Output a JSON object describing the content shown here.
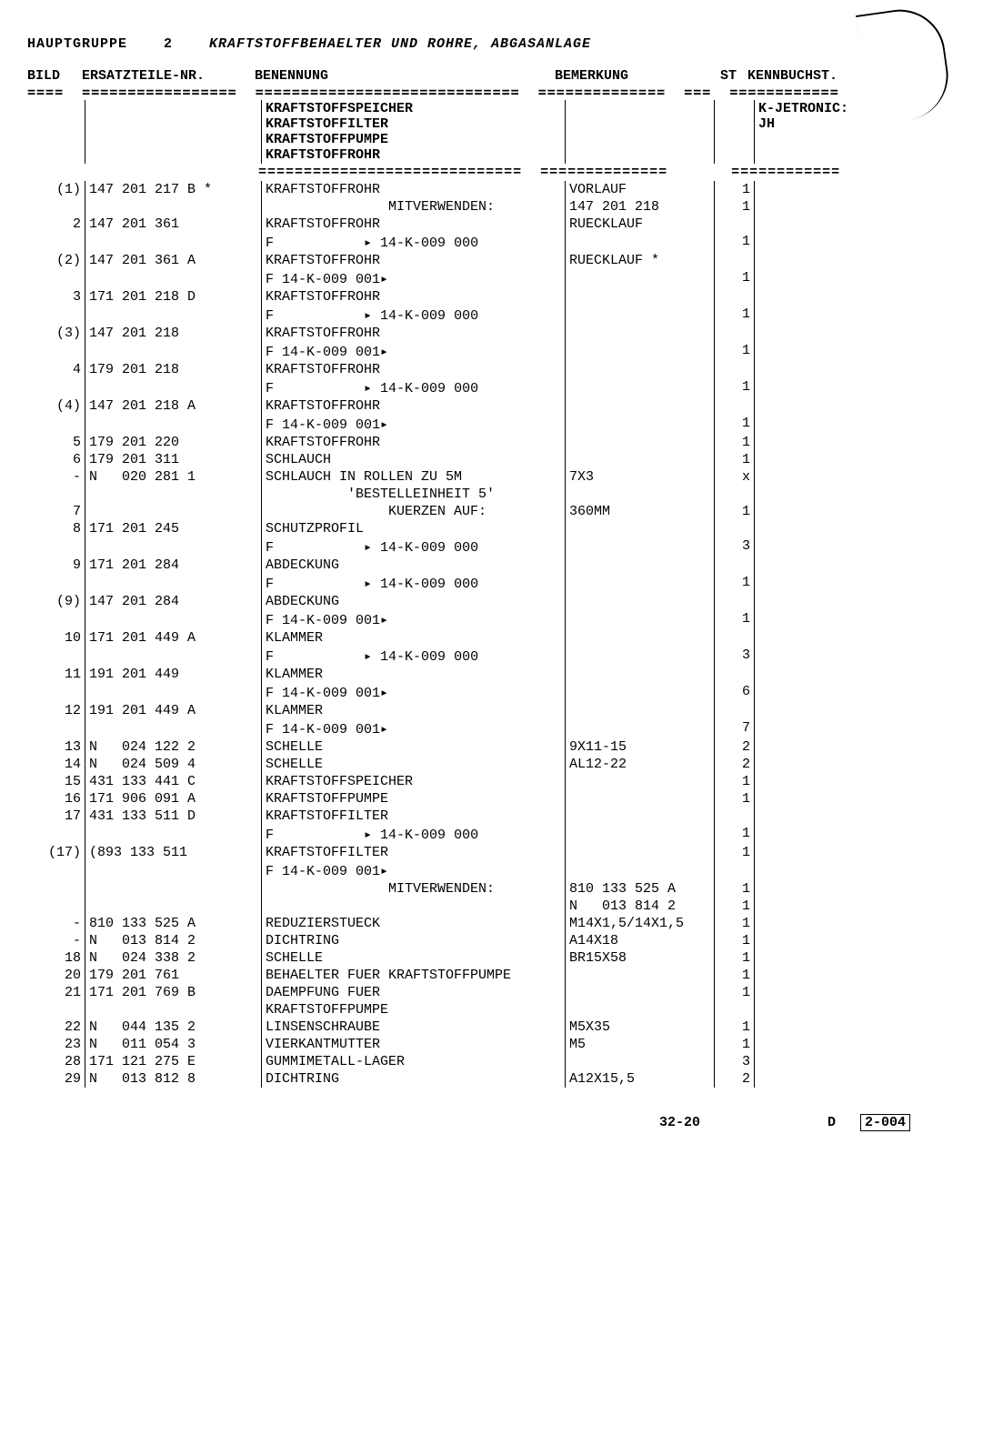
{
  "header": {
    "hauptgruppe_label": "HAUPTGRUPPE",
    "hauptgruppe_num": "2",
    "title": "KRAFTSTOFFBEHAELTER UND ROHRE, ABGASANLAGE"
  },
  "columns": {
    "bild": "BILD",
    "ersatzteile": "ERSATZTEILE-NR.",
    "benennung": "BENENNUNG",
    "bemerkung": "BEMERKUNG",
    "st": "ST",
    "kennbuchst": "KENNBUCHST."
  },
  "ruler_top": "====  =================  =============================  ==============  ===  ============",
  "section": {
    "lines": [
      "KRAFTSTOFFSPEICHER",
      "KRAFTSTOFFILTER",
      "KRAFTSTOFFPUMPE",
      "KRAFTSTOFFROHR"
    ],
    "kenn": [
      "K-JETRONIC:",
      "JH"
    ]
  },
  "ruler_mid": "                         =============================  ==============       ============",
  "rows": [
    {
      "bild": "(1)",
      "part": "147 201 217 B *",
      "ben": "KRAFTSTOFFROHR",
      "bem": "VORLAUF",
      "st": "1",
      "kenn": ""
    },
    {
      "bild": "",
      "part": "",
      "ben": "               MITVERWENDEN:",
      "bem": "147 201 218",
      "st": "1",
      "kenn": ""
    },
    {
      "bild": "2",
      "part": "147 201 361",
      "ben": "KRAFTSTOFFROHR",
      "bem": "RUECKLAUF",
      "st": "",
      "kenn": ""
    },
    {
      "bild": "",
      "part": "",
      "ben": "F           ▸ 14-K-009 000",
      "bem": "",
      "st": "1",
      "kenn": ""
    },
    {
      "bild": "(2)",
      "part": "147 201 361 A",
      "ben": "KRAFTSTOFFROHR",
      "bem": "RUECKLAUF *",
      "st": "",
      "kenn": ""
    },
    {
      "bild": "",
      "part": "",
      "ben": "F 14-K-009 001▸",
      "bem": "",
      "st": "1",
      "kenn": ""
    },
    {
      "bild": "3",
      "part": "171 201 218 D",
      "ben": "KRAFTSTOFFROHR",
      "bem": "",
      "st": "",
      "kenn": ""
    },
    {
      "bild": "",
      "part": "",
      "ben": "F           ▸ 14-K-009 000",
      "bem": "",
      "st": "1",
      "kenn": ""
    },
    {
      "bild": "(3)",
      "part": "147 201 218",
      "ben": "KRAFTSTOFFROHR",
      "bem": "",
      "st": "",
      "kenn": ""
    },
    {
      "bild": "",
      "part": "",
      "ben": "F 14-K-009 001▸",
      "bem": "",
      "st": "1",
      "kenn": ""
    },
    {
      "bild": "4",
      "part": "179 201 218",
      "ben": "KRAFTSTOFFROHR",
      "bem": "",
      "st": "",
      "kenn": ""
    },
    {
      "bild": "",
      "part": "",
      "ben": "F           ▸ 14-K-009 000",
      "bem": "",
      "st": "1",
      "kenn": ""
    },
    {
      "bild": "(4)",
      "part": "147 201 218 A",
      "ben": "KRAFTSTOFFROHR",
      "bem": "",
      "st": "",
      "kenn": ""
    },
    {
      "bild": "",
      "part": "",
      "ben": "F 14-K-009 001▸",
      "bem": "",
      "st": "1",
      "kenn": ""
    },
    {
      "bild": "5",
      "part": "179 201 220",
      "ben": "KRAFTSTOFFROHR",
      "bem": "",
      "st": "1",
      "kenn": ""
    },
    {
      "bild": "6",
      "part": "179 201 311",
      "ben": "SCHLAUCH",
      "bem": "",
      "st": "1",
      "kenn": ""
    },
    {
      "bild": "-",
      "part": "N   020 281 1",
      "ben": "SCHLAUCH IN ROLLEN ZU 5M",
      "bem": "7X3",
      "st": "x",
      "kenn": ""
    },
    {
      "bild": "",
      "part": "",
      "ben": "          'BESTELLEINHEIT 5'",
      "bem": "",
      "st": "",
      "kenn": ""
    },
    {
      "bild": "7",
      "part": "",
      "ben": "               KUERZEN AUF:",
      "bem": "360MM",
      "st": "1",
      "kenn": ""
    },
    {
      "bild": "8",
      "part": "171 201 245",
      "ben": "SCHUTZPROFIL",
      "bem": "",
      "st": "",
      "kenn": ""
    },
    {
      "bild": "",
      "part": "",
      "ben": "F           ▸ 14-K-009 000",
      "bem": "",
      "st": "3",
      "kenn": ""
    },
    {
      "bild": "9",
      "part": "171 201 284",
      "ben": "ABDECKUNG",
      "bem": "",
      "st": "",
      "kenn": ""
    },
    {
      "bild": "",
      "part": "",
      "ben": "F           ▸ 14-K-009 000",
      "bem": "",
      "st": "1",
      "kenn": ""
    },
    {
      "bild": "(9)",
      "part": "147 201 284",
      "ben": "ABDECKUNG",
      "bem": "",
      "st": "",
      "kenn": ""
    },
    {
      "bild": "",
      "part": "",
      "ben": "F 14-K-009 001▸",
      "bem": "",
      "st": "1",
      "kenn": ""
    },
    {
      "bild": "10",
      "part": "171 201 449 A",
      "ben": "KLAMMER",
      "bem": "",
      "st": "",
      "kenn": ""
    },
    {
      "bild": "",
      "part": "",
      "ben": "F           ▸ 14-K-009 000",
      "bem": "",
      "st": "3",
      "kenn": ""
    },
    {
      "bild": "11",
      "part": "191 201 449",
      "ben": "KLAMMER",
      "bem": "",
      "st": "",
      "kenn": ""
    },
    {
      "bild": "",
      "part": "",
      "ben": "F 14-K-009 001▸",
      "bem": "",
      "st": "6",
      "kenn": ""
    },
    {
      "bild": "12",
      "part": "191 201 449 A",
      "ben": "KLAMMER",
      "bem": "",
      "st": "",
      "kenn": ""
    },
    {
      "bild": "",
      "part": "",
      "ben": "F 14-K-009 001▸",
      "bem": "",
      "st": "7",
      "kenn": ""
    },
    {
      "bild": "13",
      "part": "N   024 122 2",
      "ben": "SCHELLE",
      "bem": "9X11-15",
      "st": "2",
      "kenn": ""
    },
    {
      "bild": "14",
      "part": "N   024 509 4",
      "ben": "SCHELLE",
      "bem": "AL12-22",
      "st": "2",
      "kenn": ""
    },
    {
      "bild": "15",
      "part": "431 133 441 C",
      "ben": "KRAFTSTOFFSPEICHER",
      "bem": "",
      "st": "1",
      "kenn": ""
    },
    {
      "bild": "16",
      "part": "171 906 091 A",
      "ben": "KRAFTSTOFFPUMPE",
      "bem": "",
      "st": "1",
      "kenn": ""
    },
    {
      "bild": "17",
      "part": "431 133 511 D",
      "ben": "KRAFTSTOFFILTER",
      "bem": "",
      "st": "",
      "kenn": ""
    },
    {
      "bild": "",
      "part": "",
      "ben": "F           ▸ 14-K-009 000",
      "bem": "",
      "st": "1",
      "kenn": ""
    },
    {
      "bild": "(17)",
      "part": "(893 133 511",
      "ben": "KRAFTSTOFFILTER",
      "bem": "",
      "st": "1",
      "kenn": ""
    },
    {
      "bild": "",
      "part": "",
      "ben": "F 14-K-009 001▸",
      "bem": "",
      "st": "",
      "kenn": ""
    },
    {
      "bild": "",
      "part": "",
      "ben": "               MITVERWENDEN:",
      "bem": "810 133 525 A",
      "st": "1",
      "kenn": ""
    },
    {
      "bild": "",
      "part": "",
      "ben": "",
      "bem": "N   013 814 2",
      "st": "1",
      "kenn": ""
    },
    {
      "bild": "-",
      "part": "810 133 525 A",
      "ben": "REDUZIERSTUECK",
      "bem": "M14X1,5/14X1,5",
      "st": "1",
      "kenn": ""
    },
    {
      "bild": "-",
      "part": "N   013 814 2",
      "ben": "DICHTRING",
      "bem": "A14X18",
      "st": "1",
      "kenn": ""
    },
    {
      "bild": "18",
      "part": "N   024 338 2",
      "ben": "SCHELLE",
      "bem": "BR15X58",
      "st": "1",
      "kenn": ""
    },
    {
      "bild": "20",
      "part": "179 201 761",
      "ben": "BEHAELTER FUER KRAFTSTOFFPUMPE",
      "bem": "",
      "st": "1",
      "kenn": ""
    },
    {
      "bild": "21",
      "part": "171 201 769 B",
      "ben": "DAEMPFUNG FUER",
      "bem": "",
      "st": "1",
      "kenn": ""
    },
    {
      "bild": "",
      "part": "",
      "ben": "KRAFTSTOFFPUMPE",
      "bem": "",
      "st": "",
      "kenn": ""
    },
    {
      "bild": "22",
      "part": "N   044 135 2",
      "ben": "LINSENSCHRAUBE",
      "bem": "M5X35",
      "st": "1",
      "kenn": ""
    },
    {
      "bild": "23",
      "part": "N   011 054 3",
      "ben": "VIERKANTMUTTER",
      "bem": "M5",
      "st": "1",
      "kenn": ""
    },
    {
      "bild": "28",
      "part": "171 121 275 E",
      "ben": "GUMMIMETALL-LAGER",
      "bem": "",
      "st": "3",
      "kenn": ""
    },
    {
      "bild": "29",
      "part": "N   013 812 8",
      "ben": "DICHTRING",
      "bem": "A12X15,5",
      "st": "2",
      "kenn": ""
    }
  ],
  "footer": {
    "page": "32-20",
    "rev_prefix": "D",
    "rev_box": "2-004"
  }
}
